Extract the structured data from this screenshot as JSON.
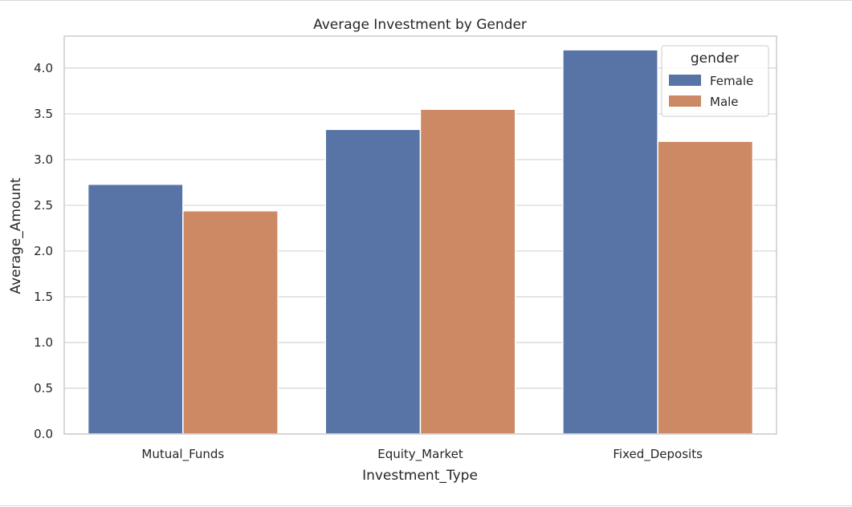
{
  "chart_data": {
    "type": "bar",
    "title": "Average Investment by Gender",
    "xlabel": "Investment_Type",
    "ylabel": "Average_Amount",
    "categories": [
      "Mutual_Funds",
      "Equity_Market",
      "Fixed_Deposits"
    ],
    "series": [
      {
        "name": "Female",
        "values": [
          2.73,
          3.33,
          4.2
        ],
        "color": "#5874a6"
      },
      {
        "name": "Male",
        "values": [
          2.44,
          3.55,
          3.2
        ],
        "color": "#cc8963"
      }
    ],
    "ylim": [
      0,
      4.35
    ],
    "yticks": [
      "0.0",
      "0.5",
      "1.0",
      "1.5",
      "2.0",
      "2.5",
      "3.0",
      "3.5",
      "4.0"
    ],
    "grid": true,
    "legend": {
      "title": "gender",
      "placement": "top-right"
    }
  },
  "colors": {
    "grid": "#d4d4d4",
    "spine": "#cccccc",
    "text": "#262626"
  }
}
